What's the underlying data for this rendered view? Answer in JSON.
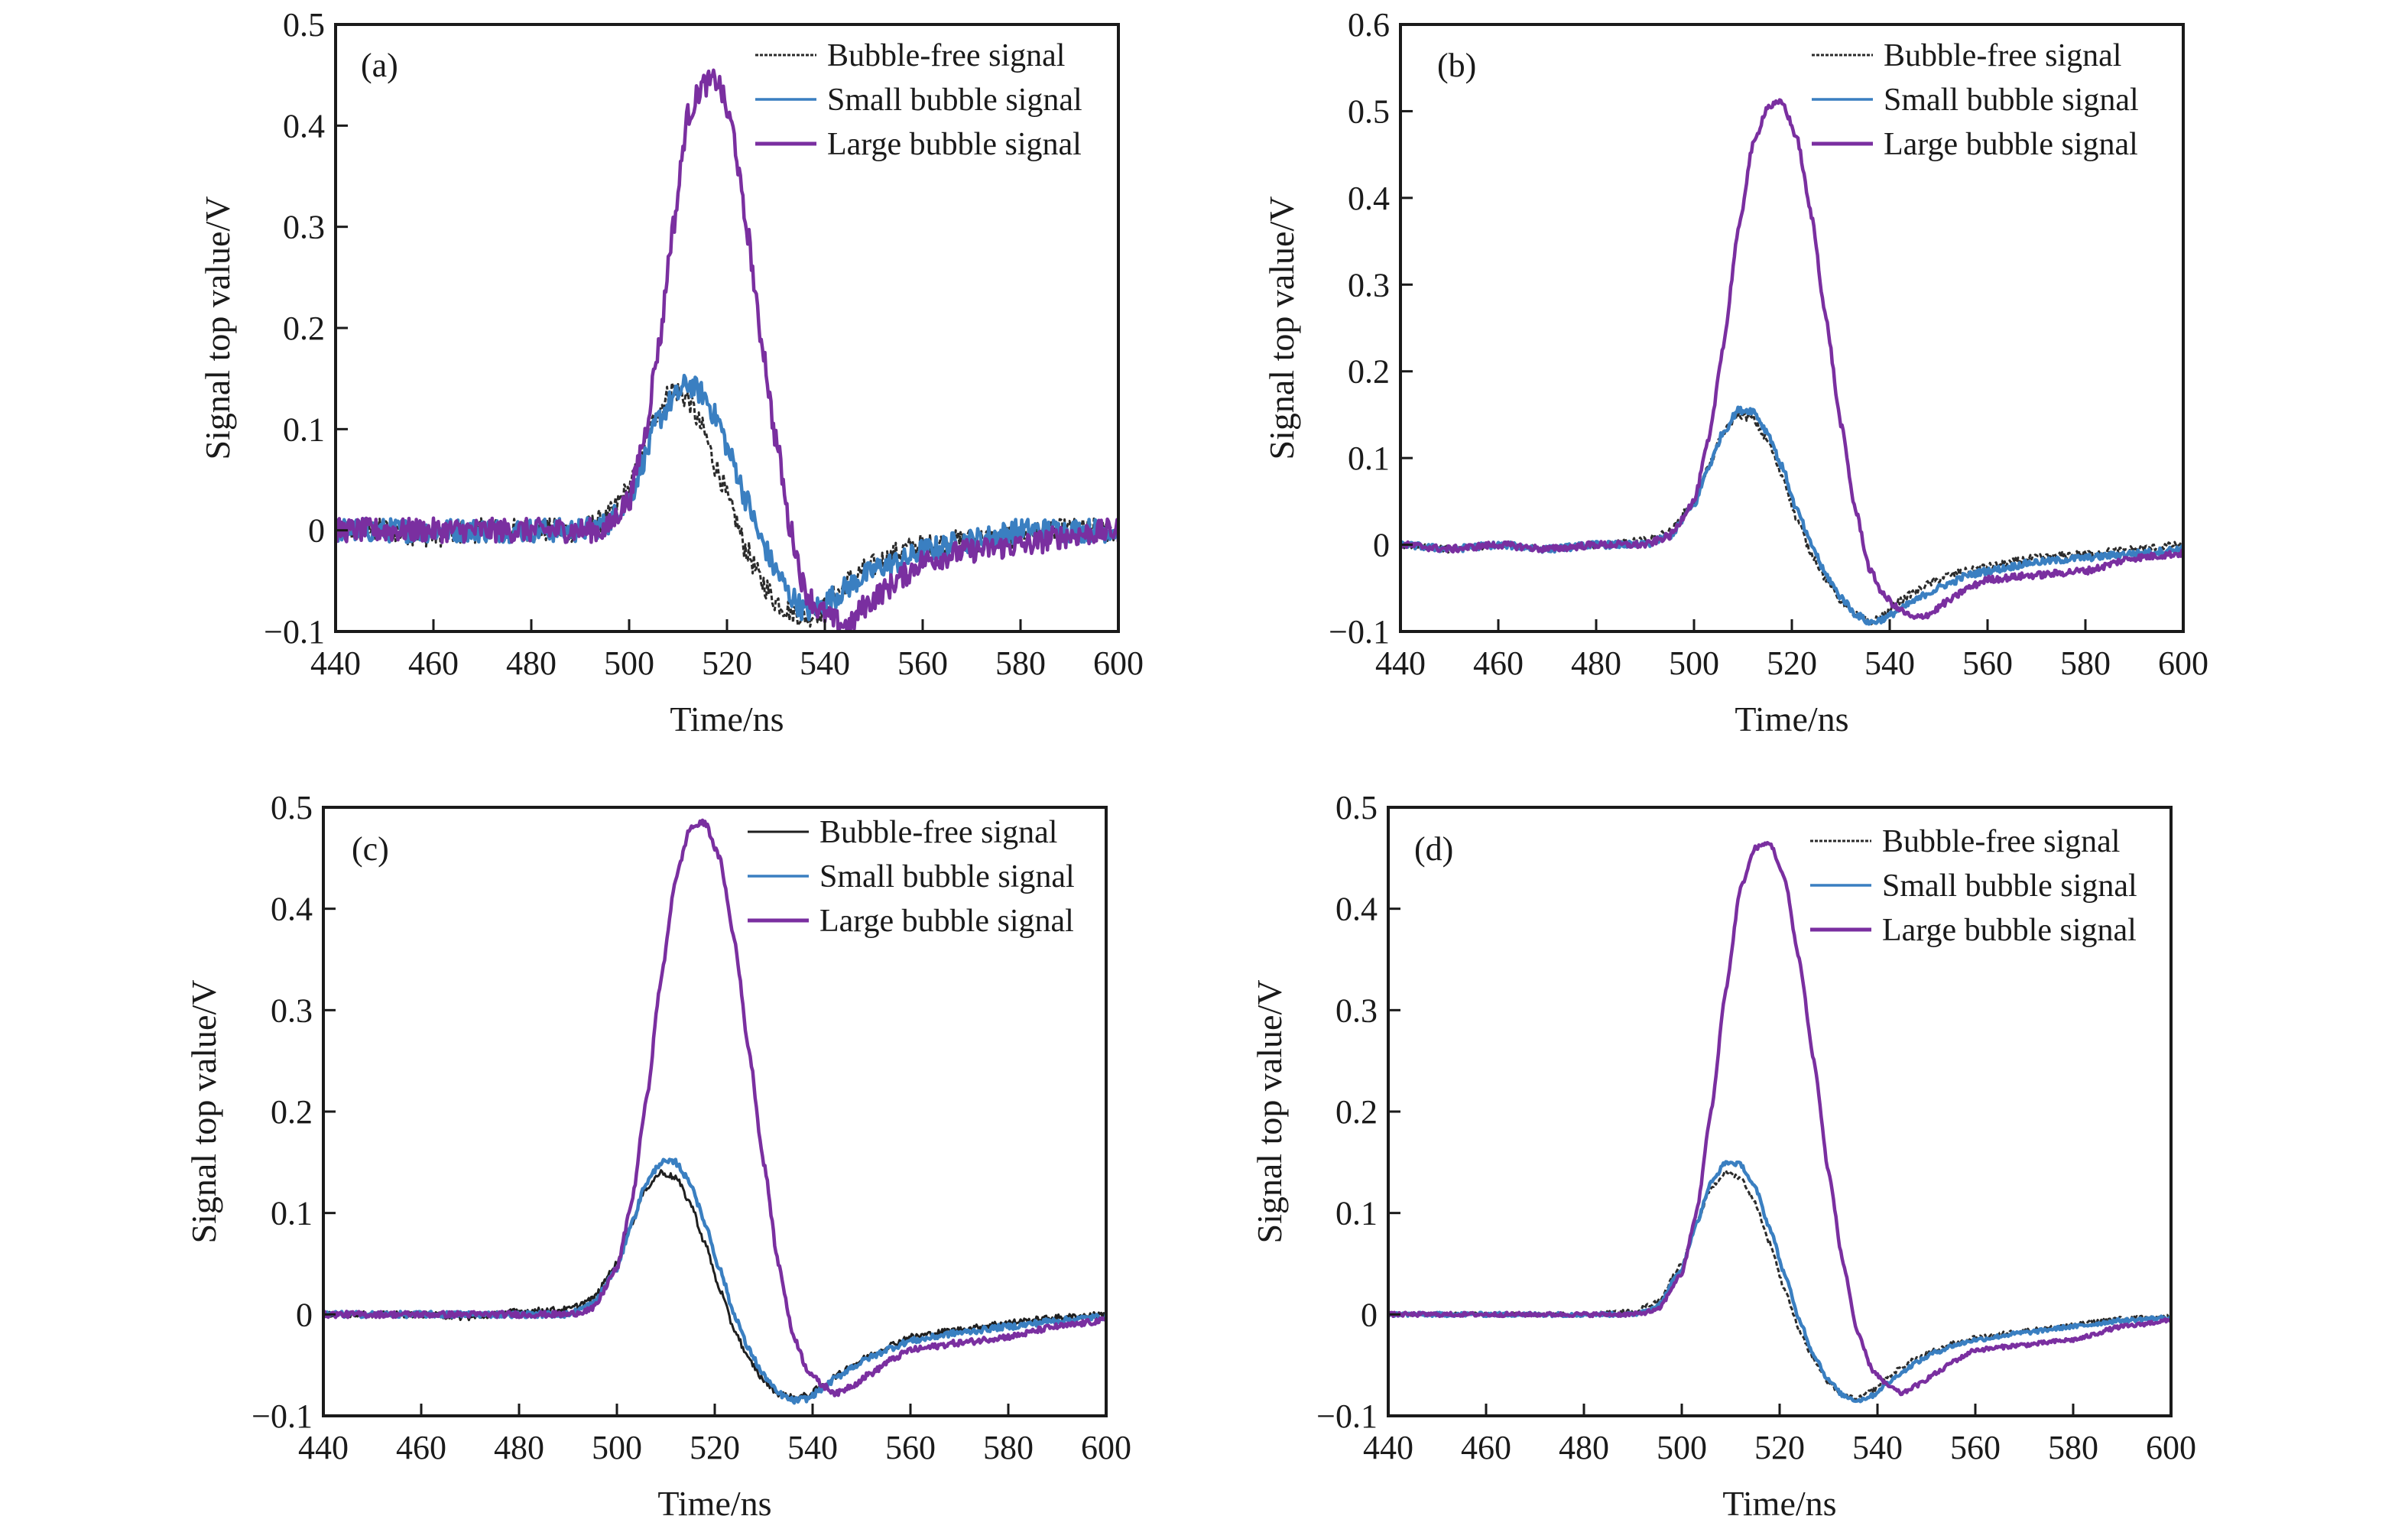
{
  "figure": {
    "legend_labels": [
      "Bubble-free signal",
      "Small bubble signal",
      "Large bubble signal"
    ]
  },
  "chart_data": [
    {
      "type": "line",
      "panel_label": "(a)",
      "title": "",
      "xlabel": "Time/ns",
      "ylabel": "Signal top value/V",
      "xlim": [
        440,
        600
      ],
      "ylim": [
        -0.1,
        0.5
      ],
      "xticks": [
        440,
        460,
        480,
        500,
        520,
        540,
        560,
        580,
        600
      ],
      "yticks": [
        -0.1,
        0,
        0.1,
        0.2,
        0.3,
        0.4,
        0.5
      ],
      "ytick_labels": [
        "−0.1",
        "0",
        "0.1",
        "0.2",
        "0.3",
        "0.4",
        "0.5"
      ],
      "grid": false,
      "legend_position": "top-right",
      "noise": 0.012,
      "x": [
        440,
        450,
        460,
        470,
        480,
        490,
        495,
        500,
        503,
        506,
        509,
        512,
        515,
        518,
        521,
        524,
        527,
        530,
        533,
        536,
        539,
        542,
        545,
        548,
        552,
        556,
        560,
        570,
        580,
        590,
        600
      ],
      "series": [
        {
          "name": "Bubble-free signal",
          "color": "#2b2b2b",
          "style": "dashed",
          "values": [
            0.0,
            0.0,
            -0.005,
            0.0,
            0.0,
            0.0,
            0.01,
            0.04,
            0.08,
            0.12,
            0.14,
            0.13,
            0.1,
            0.06,
            0.02,
            -0.02,
            -0.05,
            -0.07,
            -0.08,
            -0.085,
            -0.08,
            -0.065,
            -0.05,
            -0.04,
            -0.03,
            -0.02,
            -0.015,
            -0.01,
            -0.005,
            0.0,
            0.0
          ]
        },
        {
          "name": "Small bubble signal",
          "color": "#3a7fc1",
          "style": "solid",
          "values": [
            0.0,
            0.0,
            0.0,
            0.0,
            0.0,
            0.0,
            0.005,
            0.03,
            0.07,
            0.11,
            0.13,
            0.145,
            0.135,
            0.11,
            0.07,
            0.03,
            -0.01,
            -0.04,
            -0.065,
            -0.08,
            -0.075,
            -0.065,
            -0.055,
            -0.045,
            -0.035,
            -0.03,
            -0.02,
            -0.01,
            0.0,
            0.0,
            0.0
          ]
        },
        {
          "name": "Large bubble signal",
          "color": "#7a2fa0",
          "style": "solid",
          "values": [
            0.0,
            0.0,
            0.0,
            0.0,
            0.0,
            0.0,
            0.0,
            0.03,
            0.09,
            0.18,
            0.3,
            0.41,
            0.44,
            0.445,
            0.4,
            0.3,
            0.19,
            0.09,
            0.0,
            -0.06,
            -0.08,
            -0.09,
            -0.095,
            -0.075,
            -0.06,
            -0.045,
            -0.03,
            -0.02,
            -0.015,
            -0.005,
            0.0
          ]
        }
      ]
    },
    {
      "type": "line",
      "panel_label": "(b)",
      "title": "",
      "xlabel": "Time/ns",
      "ylabel": "Signal top value/V",
      "xlim": [
        440,
        600
      ],
      "ylim": [
        -0.1,
        0.6
      ],
      "xticks": [
        440,
        460,
        480,
        500,
        520,
        540,
        560,
        580,
        600
      ],
      "yticks": [
        -0.1,
        0,
        0.1,
        0.2,
        0.3,
        0.4,
        0.5,
        0.6
      ],
      "ytick_labels": [
        "−0.1",
        "0",
        "0.1",
        "0.2",
        "0.3",
        "0.4",
        "0.5",
        "0.6"
      ],
      "grid": false,
      "legend_position": "top-right",
      "noise": 0.004,
      "x": [
        440,
        450,
        460,
        470,
        480,
        490,
        495,
        500,
        503,
        506,
        509,
        512,
        515,
        518,
        521,
        524,
        527,
        530,
        533,
        536,
        539,
        542,
        545,
        548,
        552,
        556,
        560,
        570,
        580,
        590,
        600
      ],
      "series": [
        {
          "name": "Bubble-free signal",
          "color": "#2b2b2b",
          "style": "dashed",
          "values": [
            0.0,
            -0.005,
            0.0,
            -0.005,
            0.0,
            0.005,
            0.015,
            0.05,
            0.09,
            0.13,
            0.15,
            0.145,
            0.12,
            0.08,
            0.03,
            -0.01,
            -0.04,
            -0.065,
            -0.08,
            -0.09,
            -0.08,
            -0.065,
            -0.055,
            -0.045,
            -0.035,
            -0.03,
            -0.025,
            -0.015,
            -0.01,
            -0.005,
            0.0
          ]
        },
        {
          "name": "Small bubble signal",
          "color": "#3a7fc1",
          "style": "solid",
          "values": [
            0.0,
            -0.005,
            0.0,
            -0.005,
            0.0,
            0.0,
            0.01,
            0.045,
            0.09,
            0.13,
            0.155,
            0.155,
            0.13,
            0.09,
            0.04,
            0.0,
            -0.035,
            -0.06,
            -0.08,
            -0.09,
            -0.085,
            -0.075,
            -0.065,
            -0.055,
            -0.045,
            -0.035,
            -0.03,
            -0.02,
            -0.015,
            -0.01,
            -0.005
          ]
        },
        {
          "name": "Large bubble signal",
          "color": "#7a2fa0",
          "style": "solid",
          "values": [
            0.0,
            -0.005,
            0.0,
            -0.005,
            0.0,
            0.0,
            0.01,
            0.05,
            0.12,
            0.23,
            0.36,
            0.46,
            0.505,
            0.51,
            0.47,
            0.38,
            0.26,
            0.14,
            0.04,
            -0.03,
            -0.06,
            -0.075,
            -0.085,
            -0.08,
            -0.065,
            -0.05,
            -0.04,
            -0.035,
            -0.03,
            -0.015,
            -0.01
          ]
        }
      ]
    },
    {
      "type": "line",
      "panel_label": "(c)",
      "title": "",
      "xlabel": "Time/ns",
      "ylabel": "Signal top value/V",
      "xlim": [
        440,
        600
      ],
      "ylim": [
        -0.1,
        0.5
      ],
      "xticks": [
        440,
        460,
        480,
        500,
        520,
        540,
        560,
        580,
        600
      ],
      "yticks": [
        -0.1,
        0,
        0.1,
        0.2,
        0.3,
        0.4,
        0.5
      ],
      "ytick_labels": [
        "−0.1",
        "0",
        "0.1",
        "0.2",
        "0.3",
        "0.4",
        "0.5"
      ],
      "grid": false,
      "legend_position": "top-right",
      "noise": 0.003,
      "x": [
        440,
        450,
        460,
        470,
        480,
        490,
        495,
        500,
        503,
        506,
        509,
        512,
        515,
        518,
        521,
        524,
        527,
        530,
        533,
        536,
        539,
        542,
        545,
        548,
        552,
        556,
        560,
        570,
        580,
        590,
        600
      ],
      "series": [
        {
          "name": "Bubble-free signal",
          "color": "#1f1f1f",
          "style": "solid",
          "values": [
            0.0,
            0.0,
            0.0,
            -0.003,
            0.003,
            0.005,
            0.015,
            0.05,
            0.09,
            0.125,
            0.14,
            0.135,
            0.11,
            0.07,
            0.025,
            -0.015,
            -0.045,
            -0.065,
            -0.078,
            -0.082,
            -0.08,
            -0.07,
            -0.06,
            -0.05,
            -0.04,
            -0.03,
            -0.022,
            -0.015,
            -0.008,
            -0.003,
            0.0
          ]
        },
        {
          "name": "Small bubble signal",
          "color": "#3a7fc1",
          "style": "solid",
          "values": [
            0.0,
            0.0,
            0.0,
            0.0,
            0.0,
            0.0,
            0.01,
            0.045,
            0.09,
            0.13,
            0.15,
            0.15,
            0.13,
            0.09,
            0.045,
            0.0,
            -0.035,
            -0.06,
            -0.078,
            -0.085,
            -0.083,
            -0.073,
            -0.062,
            -0.052,
            -0.042,
            -0.033,
            -0.026,
            -0.018,
            -0.012,
            -0.006,
            -0.002
          ]
        },
        {
          "name": "Large bubble signal",
          "color": "#7a2fa0",
          "style": "solid",
          "values": [
            0.0,
            0.0,
            0.0,
            0.0,
            0.0,
            0.0,
            0.005,
            0.045,
            0.11,
            0.21,
            0.33,
            0.43,
            0.48,
            0.485,
            0.45,
            0.37,
            0.26,
            0.15,
            0.05,
            -0.02,
            -0.055,
            -0.07,
            -0.078,
            -0.07,
            -0.058,
            -0.045,
            -0.035,
            -0.028,
            -0.022,
            -0.012,
            -0.006
          ]
        }
      ]
    },
    {
      "type": "line",
      "panel_label": "(d)",
      "title": "",
      "xlabel": "Time/ns",
      "ylabel": "Signal top value/V",
      "xlim": [
        440,
        600
      ],
      "ylim": [
        -0.1,
        0.5
      ],
      "xticks": [
        440,
        460,
        480,
        500,
        520,
        540,
        560,
        580,
        600
      ],
      "yticks": [
        -0.1,
        0,
        0.1,
        0.2,
        0.3,
        0.4,
        0.5
      ],
      "ytick_labels": [
        "−0.1",
        "0",
        "0.1",
        "0.2",
        "0.3",
        "0.4",
        "0.5"
      ],
      "grid": false,
      "legend_position": "top-right",
      "noise": 0.002,
      "x": [
        440,
        450,
        460,
        470,
        480,
        490,
        495,
        500,
        503,
        506,
        509,
        512,
        515,
        518,
        521,
        524,
        527,
        530,
        533,
        536,
        539,
        542,
        545,
        548,
        552,
        556,
        560,
        570,
        580,
        590,
        600
      ],
      "series": [
        {
          "name": "Bubble-free signal",
          "color": "#2b2b2b",
          "style": "dashed",
          "values": [
            0.0,
            0.0,
            0.0,
            0.0,
            0.0,
            0.003,
            0.012,
            0.05,
            0.09,
            0.125,
            0.14,
            0.135,
            0.11,
            0.07,
            0.025,
            -0.015,
            -0.045,
            -0.068,
            -0.08,
            -0.083,
            -0.075,
            -0.062,
            -0.052,
            -0.043,
            -0.035,
            -0.028,
            -0.023,
            -0.016,
            -0.01,
            -0.004,
            -0.002
          ]
        },
        {
          "name": "Small bubble signal",
          "color": "#3a7fc1",
          "style": "solid",
          "values": [
            0.0,
            0.0,
            0.0,
            0.0,
            0.0,
            0.0,
            0.008,
            0.045,
            0.09,
            0.13,
            0.15,
            0.148,
            0.125,
            0.085,
            0.04,
            -0.005,
            -0.04,
            -0.065,
            -0.08,
            -0.085,
            -0.08,
            -0.068,
            -0.057,
            -0.047,
            -0.037,
            -0.03,
            -0.025,
            -0.018,
            -0.012,
            -0.006,
            -0.003
          ]
        },
        {
          "name": "Large bubble signal",
          "color": "#7a2fa0",
          "style": "solid",
          "values": [
            0.0,
            0.0,
            0.0,
            0.0,
            0.0,
            0.0,
            0.004,
            0.04,
            0.1,
            0.2,
            0.32,
            0.42,
            0.46,
            0.465,
            0.43,
            0.35,
            0.25,
            0.14,
            0.05,
            -0.02,
            -0.055,
            -0.07,
            -0.078,
            -0.07,
            -0.058,
            -0.045,
            -0.035,
            -0.03,
            -0.025,
            -0.012,
            -0.006
          ]
        }
      ]
    }
  ]
}
